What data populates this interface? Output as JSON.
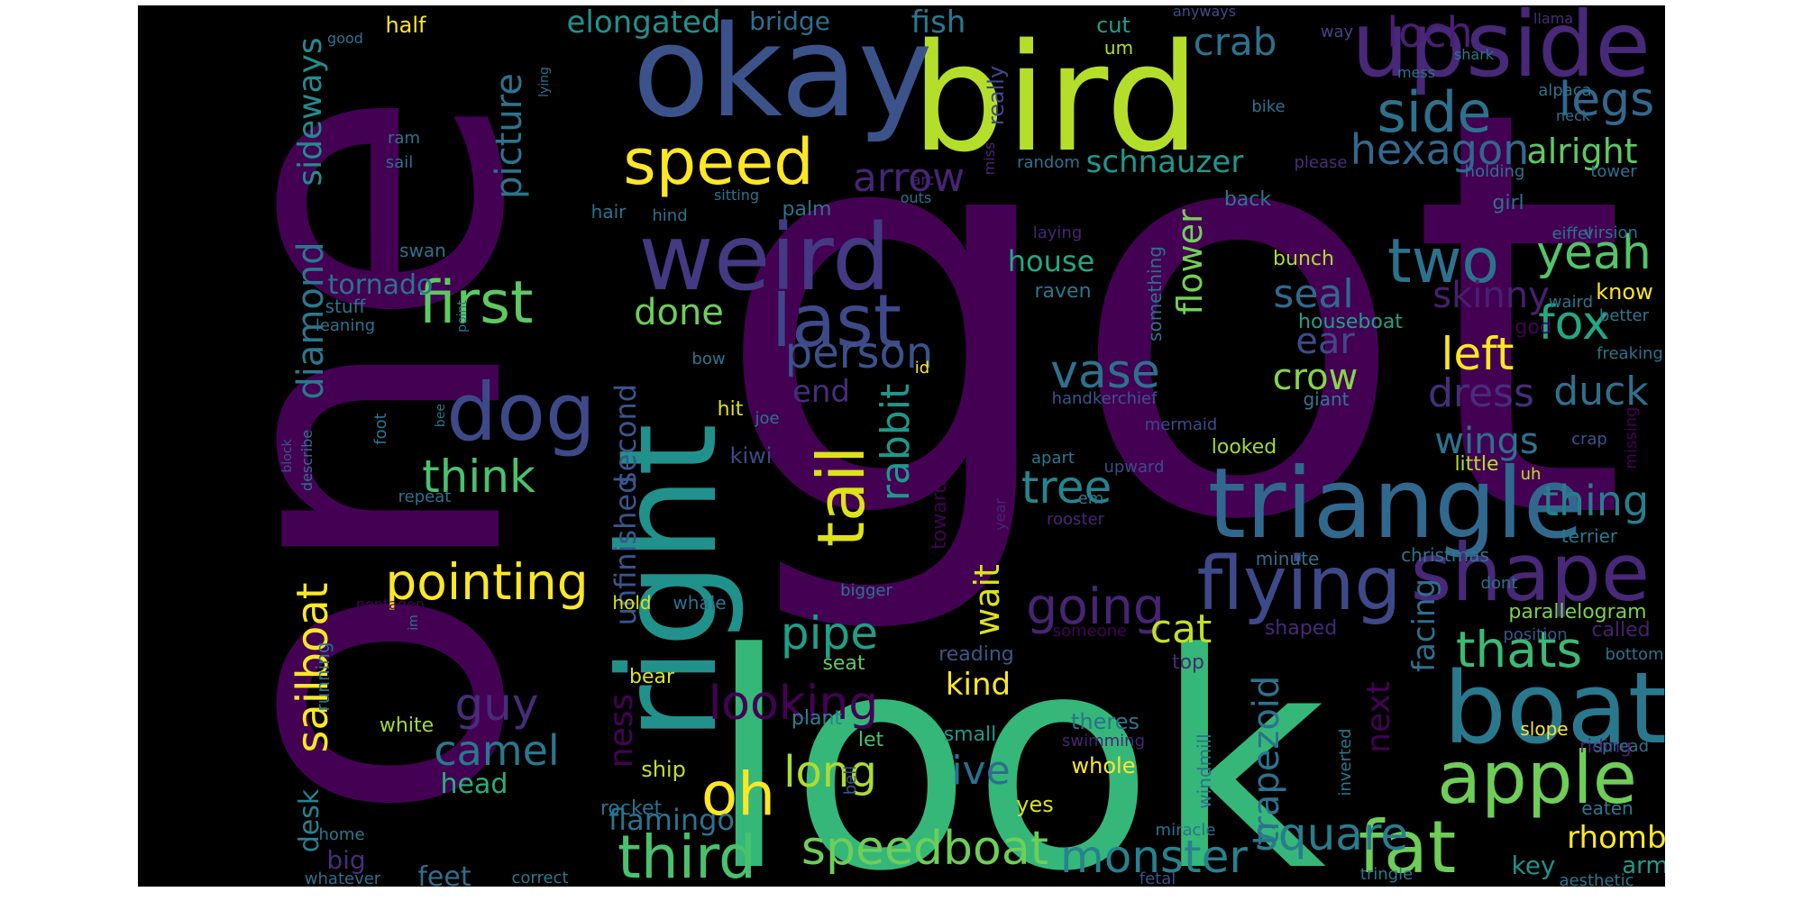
{
  "word_cloud": {
    "background": "#000000",
    "words": [
      {
        "text": "got",
        "color": "#440154"
      },
      {
        "text": "look",
        "color": "#35b779"
      },
      {
        "text": "one",
        "color": "#440154"
      },
      {
        "text": "right",
        "color": "#21918c"
      },
      {
        "text": "bird",
        "color": "#b5de2b"
      },
      {
        "text": "okay",
        "color": "#3b528b"
      },
      {
        "text": "upside",
        "color": "#482878"
      },
      {
        "text": "weird",
        "color": "#443983"
      },
      {
        "text": "triangle",
        "color": "#31688e"
      },
      {
        "text": "boat",
        "color": "#2a788e"
      },
      {
        "text": "shape",
        "color": "#482878"
      },
      {
        "text": "apple",
        "color": "#6ece58"
      },
      {
        "text": "fat",
        "color": "#6ece58"
      },
      {
        "text": "flying",
        "color": "#3e4989"
      },
      {
        "text": "speed",
        "color": "#fde725"
      },
      {
        "text": "dog",
        "color": "#3e4989"
      },
      {
        "text": "first",
        "color": "#5ec962"
      },
      {
        "text": "last",
        "color": "#3e4989"
      },
      {
        "text": "two",
        "color": "#2c728e"
      },
      {
        "text": "side",
        "color": "#2c728e"
      },
      {
        "text": "third",
        "color": "#4ac16d"
      },
      {
        "text": "speedboat",
        "color": "#6ece58"
      },
      {
        "text": "pointing",
        "color": "#fde725"
      },
      {
        "text": "oh",
        "color": "#fde725"
      },
      {
        "text": "tail",
        "color": "#dde318"
      },
      {
        "text": "monster",
        "color": "#26828e"
      },
      {
        "text": "square",
        "color": "#287c8e"
      },
      {
        "text": "thats",
        "color": "#3aba76"
      },
      {
        "text": "looking",
        "color": "#440154"
      },
      {
        "text": "going",
        "color": "#482475"
      },
      {
        "text": "think",
        "color": "#4ac16d"
      },
      {
        "text": "person",
        "color": "#3b528b"
      },
      {
        "text": "guy",
        "color": "#472c7a"
      },
      {
        "text": "pipe",
        "color": "#1fa088"
      },
      {
        "text": "long",
        "color": "#addc30"
      },
      {
        "text": "camel",
        "color": "#2a788e"
      },
      {
        "text": "vase",
        "color": "#2c728e"
      },
      {
        "text": "tree",
        "color": "#25848e"
      },
      {
        "text": "hexagon",
        "color": "#31688e"
      },
      {
        "text": "legs",
        "color": "#31688e"
      },
      {
        "text": "yeah",
        "color": "#52c569"
      },
      {
        "text": "fox",
        "color": "#22a884"
      },
      {
        "text": "left",
        "color": "#fde725"
      },
      {
        "text": "dress",
        "color": "#472d7b"
      },
      {
        "text": "duck",
        "color": "#2d708e"
      },
      {
        "text": "thing",
        "color": "#277f8e"
      },
      {
        "text": "loch",
        "color": "#482071"
      },
      {
        "text": "crab",
        "color": "#2c728e"
      },
      {
        "text": "alright",
        "color": "#5ec962"
      },
      {
        "text": "seal",
        "color": "#31688e"
      },
      {
        "text": "skinny",
        "color": "#481f70"
      },
      {
        "text": "ear",
        "color": "#3e4989"
      },
      {
        "text": "crow",
        "color": "#86d549"
      },
      {
        "text": "cat",
        "color": "#c2df23"
      },
      {
        "text": "ive",
        "color": "#2e6e8e"
      },
      {
        "text": "sailboat",
        "color": "#fde725"
      },
      {
        "text": "diamond",
        "color": "#2a788e"
      },
      {
        "text": "sideways",
        "color": "#228c8d"
      },
      {
        "text": "picture",
        "color": "#2c728e"
      },
      {
        "text": "flower",
        "color": "#73d056"
      },
      {
        "text": "rabbit",
        "color": "#1f988b"
      },
      {
        "text": "second",
        "color": "#39558c"
      },
      {
        "text": "unfinished",
        "color": "#39558c"
      },
      {
        "text": "ness",
        "color": "#440154"
      },
      {
        "text": "wait",
        "color": "#dde318"
      },
      {
        "text": "trapezoid",
        "color": "#2c728e"
      },
      {
        "text": "next",
        "color": "#440154"
      },
      {
        "text": "facing",
        "color": "#2d708e"
      },
      {
        "text": "wings",
        "color": "#2c728e"
      },
      {
        "text": "tornado",
        "color": "#2c728e"
      },
      {
        "text": "end",
        "color": "#472d7b"
      },
      {
        "text": "head",
        "color": "#29af7f"
      },
      {
        "text": "flamingo",
        "color": "#2c728e"
      },
      {
        "text": "feet",
        "color": "#2e6e8e"
      },
      {
        "text": "big",
        "color": "#472d7b"
      },
      {
        "text": "desk",
        "color": "#26828e"
      },
      {
        "text": "key",
        "color": "#21918c"
      },
      {
        "text": "rhombus",
        "color": "#fde725"
      },
      {
        "text": "arm",
        "color": "#1e9b8a"
      },
      {
        "text": "kind",
        "color": "#fde725"
      },
      {
        "text": "half",
        "color": "#fde725"
      },
      {
        "text": "bridge",
        "color": "#2d708e"
      },
      {
        "text": "elongated",
        "color": "#21918c"
      },
      {
        "text": "fish",
        "color": "#2a788e"
      },
      {
        "text": "cut",
        "color": "#1f9e89"
      },
      {
        "text": "um",
        "color": "#b5de2b"
      },
      {
        "text": "schnauzer",
        "color": "#1f988b"
      },
      {
        "text": "arrow",
        "color": "#482475"
      },
      {
        "text": "done",
        "color": "#6ece58"
      },
      {
        "text": "house",
        "color": "#22a884"
      },
      {
        "text": "really",
        "color": "#3e4989"
      },
      {
        "text": "white",
        "color": "#a0da39"
      },
      {
        "text": "yes",
        "color": "#dde318"
      },
      {
        "text": "parallelogram",
        "color": "#7ad151"
      },
      {
        "text": "called",
        "color": "#481f70"
      },
      {
        "text": "whole",
        "color": "#fde725"
      },
      {
        "text": "small",
        "color": "#1f988b"
      },
      {
        "text": "theres",
        "color": "#2c728e"
      },
      {
        "text": "windmill",
        "color": "#2c728e"
      },
      {
        "text": "ship",
        "color": "#c2df23"
      },
      {
        "text": "rocket",
        "color": "#2c728e"
      },
      {
        "text": "seat",
        "color": "#5ec962"
      },
      {
        "text": "let",
        "color": "#4ac16d"
      },
      {
        "text": "plant",
        "color": "#25848e"
      },
      {
        "text": "reading",
        "color": "#38588c"
      },
      {
        "text": "top",
        "color": "#482878"
      },
      {
        "text": "hit",
        "color": "#dde318"
      },
      {
        "text": "kiwi",
        "color": "#3e4989"
      },
      {
        "text": "towards",
        "color": "#440154"
      },
      {
        "text": "hold",
        "color": "#dde318"
      },
      {
        "text": "whale",
        "color": "#2c728e"
      },
      {
        "text": "bear",
        "color": "#dde318"
      },
      {
        "text": "running",
        "color": "#2c728e"
      },
      {
        "text": "shaped",
        "color": "#482878"
      },
      {
        "text": "someone",
        "color": "#440154"
      },
      {
        "text": "position",
        "color": "#39558c"
      },
      {
        "text": "bottom",
        "color": "#2c728e"
      },
      {
        "text": "slope",
        "color": "#fde725"
      },
      {
        "text": "riding",
        "color": "#482475"
      },
      {
        "text": "spread",
        "color": "#2c728e"
      },
      {
        "text": "eaten",
        "color": "#2a788e"
      },
      {
        "text": "aesthetic",
        "color": "#2a788e"
      },
      {
        "text": "tringle",
        "color": "#2a788e"
      },
      {
        "text": "correct",
        "color": "#2a788e"
      },
      {
        "text": "whatever",
        "color": "#2c728e"
      },
      {
        "text": "fetal",
        "color": "#3b528b"
      },
      {
        "text": "bell",
        "color": "#3b528b"
      },
      {
        "text": "home",
        "color": "#2a788e"
      },
      {
        "text": "miracle",
        "color": "#2c728e"
      },
      {
        "text": "swimming",
        "color": "#482475"
      },
      {
        "text": "inverted",
        "color": "#2a788e"
      },
      {
        "text": "little",
        "color": "#b5de2b"
      },
      {
        "text": "looked",
        "color": "#a0da39"
      },
      {
        "text": "christmas",
        "color": "#2a788e"
      },
      {
        "text": "minute",
        "color": "#2c728e"
      },
      {
        "text": "dont",
        "color": "#2c728e"
      },
      {
        "text": "terrier",
        "color": "#2a788e"
      },
      {
        "text": "uh",
        "color": "#c2df23"
      },
      {
        "text": "crap",
        "color": "#3b528b"
      },
      {
        "text": "missing",
        "color": "#440154"
      },
      {
        "text": "handkerchief",
        "color": "#39558c"
      },
      {
        "text": "mermaid",
        "color": "#3e4989"
      },
      {
        "text": "apart",
        "color": "#2a788e"
      },
      {
        "text": "upward",
        "color": "#3e4989"
      },
      {
        "text": "em",
        "color": "#2c728e"
      },
      {
        "text": "rooster",
        "color": "#482475"
      },
      {
        "text": "year",
        "color": "#482475"
      },
      {
        "text": "giant",
        "color": "#2a788e"
      },
      {
        "text": "something",
        "color": "#2c728e"
      },
      {
        "text": "joe",
        "color": "#2c728e"
      },
      {
        "text": "id",
        "color": "#fde725"
      },
      {
        "text": "bow",
        "color": "#2a788e"
      },
      {
        "text": "raven",
        "color": "#2a788e"
      },
      {
        "text": "laying",
        "color": "#482475"
      },
      {
        "text": "bunch",
        "color": "#addc30"
      },
      {
        "text": "houseboat",
        "color": "#1fa088"
      },
      {
        "text": "god",
        "color": "#440154"
      },
      {
        "text": "know",
        "color": "#fde725"
      },
      {
        "text": "waird",
        "color": "#2c728e"
      },
      {
        "text": "better",
        "color": "#2a788e"
      },
      {
        "text": "freaking",
        "color": "#2c728e"
      },
      {
        "text": "girl",
        "color": "#2c728e"
      },
      {
        "text": "eiffel",
        "color": "#2c728e"
      },
      {
        "text": "virsion",
        "color": "#2c728e"
      },
      {
        "text": "tower",
        "color": "#2c728e"
      },
      {
        "text": "holding",
        "color": "#2c728e"
      },
      {
        "text": "please",
        "color": "#472d7b"
      },
      {
        "text": "random",
        "color": "#2c728e"
      },
      {
        "text": "back",
        "color": "#2a788e"
      },
      {
        "text": "miss",
        "color": "#482475"
      },
      {
        "text": "bike",
        "color": "#2c728e"
      },
      {
        "text": "mess",
        "color": "#2c728e"
      },
      {
        "text": "shark",
        "color": "#2a788e"
      },
      {
        "text": "alpaca",
        "color": "#2c728e"
      },
      {
        "text": "neck",
        "color": "#2c728e"
      },
      {
        "text": "llama",
        "color": "#472d7b"
      },
      {
        "text": "way",
        "color": "#3e4989"
      },
      {
        "text": "anyways",
        "color": "#3e4989"
      },
      {
        "text": "arc",
        "color": "#482475"
      },
      {
        "text": "outs",
        "color": "#2c728e"
      },
      {
        "text": "palm",
        "color": "#2c728e"
      },
      {
        "text": "sitting",
        "color": "#2c728e"
      },
      {
        "text": "hind",
        "color": "#2c728e"
      },
      {
        "text": "hair",
        "color": "#2c728e"
      },
      {
        "text": "swan",
        "color": "#2c728e"
      },
      {
        "text": "stuff",
        "color": "#2c728e"
      },
      {
        "text": "leaning",
        "color": "#2c728e"
      },
      {
        "text": "point",
        "color": "#2c728e"
      },
      {
        "text": "foot",
        "color": "#2c728e"
      },
      {
        "text": "bee",
        "color": "#2c728e"
      },
      {
        "text": "block",
        "color": "#39558c"
      },
      {
        "text": "describe",
        "color": "#2c728e"
      },
      {
        "text": "repeat",
        "color": "#2c728e"
      },
      {
        "text": "bigger",
        "color": "#2c728e"
      },
      {
        "text": "pentagon",
        "color": "#440154"
      },
      {
        "text": "im",
        "color": "#2c728e"
      },
      {
        "text": "good",
        "color": "#2c728e"
      },
      {
        "text": "lying",
        "color": "#2c728e"
      },
      {
        "text": "ram",
        "color": "#2c728e"
      },
      {
        "text": "sail",
        "color": "#2c728e"
      }
    ]
  }
}
